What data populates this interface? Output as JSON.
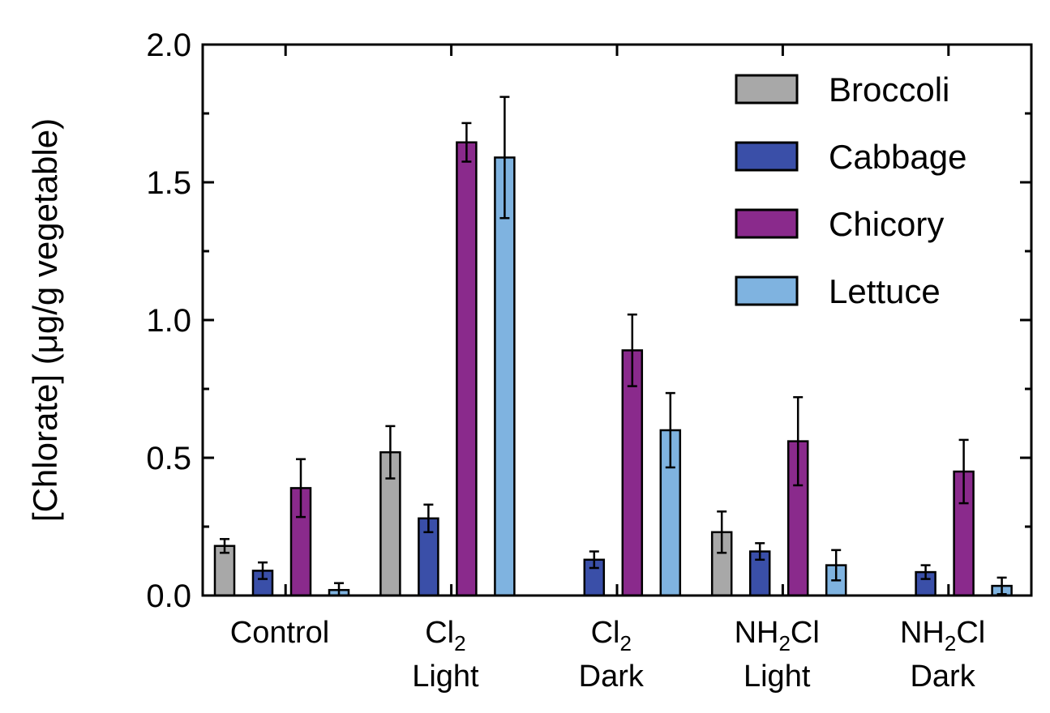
{
  "chart_data": {
    "type": "bar",
    "ylabel": "[Chlorate] (μg/g vegetable)",
    "ylim": [
      0,
      2.0
    ],
    "yticks": [
      "0.0",
      "0.5",
      "1.0",
      "1.5",
      "2.0"
    ],
    "yticks_values": [
      0,
      0.5,
      1.0,
      1.5,
      2.0
    ],
    "legend_position": "top-right",
    "categories": [
      {
        "line1": "Control",
        "line2": ""
      },
      {
        "line1": "Cl",
        "sub": "2",
        "line2": "Light"
      },
      {
        "line1": "Cl",
        "sub": "2",
        "line2": "Dark"
      },
      {
        "line1": "NH",
        "sub": "2",
        "line1b": "Cl",
        "line2": "Light"
      },
      {
        "line1": "NH",
        "sub": "2",
        "line1b": "Cl",
        "line2": "Dark"
      }
    ],
    "series": [
      {
        "name": "Broccoli",
        "color": "#a8a8a8",
        "values": [
          0.18,
          0.52,
          null,
          0.23,
          null
        ],
        "errors": [
          0.025,
          0.095,
          null,
          0.075,
          null
        ]
      },
      {
        "name": "Cabbage",
        "color": "#3a4fa8",
        "values": [
          0.09,
          0.28,
          0.13,
          0.16,
          0.085
        ],
        "errors": [
          0.03,
          0.05,
          0.03,
          0.03,
          0.025
        ]
      },
      {
        "name": "Chicory",
        "color": "#8a2a8c",
        "values": [
          0.39,
          1.645,
          0.89,
          0.56,
          0.45
        ],
        "errors": [
          0.105,
          0.07,
          0.13,
          0.16,
          0.115
        ]
      },
      {
        "name": "Lettuce",
        "color": "#7fb3e0",
        "values": [
          0.02,
          1.59,
          0.6,
          0.11,
          0.035
        ],
        "errors": [
          0.025,
          0.22,
          0.135,
          0.055,
          0.03
        ]
      }
    ]
  }
}
